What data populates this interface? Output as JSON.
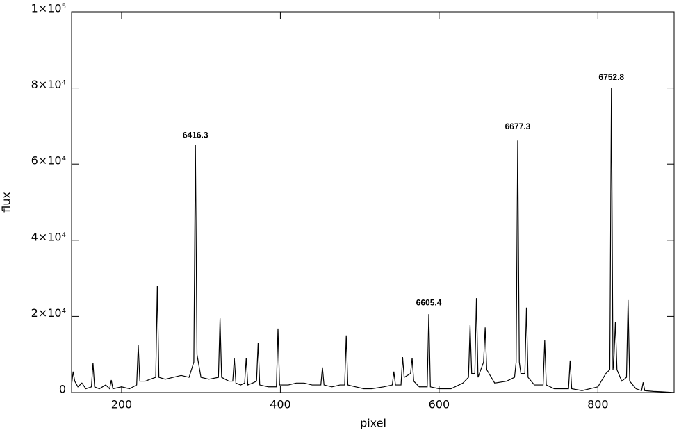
{
  "chart_data": {
    "type": "line",
    "xlabel": "pixel",
    "ylabel": "flux",
    "x": [
      137,
      139,
      141,
      145,
      150,
      155,
      162,
      164,
      166,
      172,
      180,
      185,
      187,
      189,
      200,
      210,
      219,
      221,
      223,
      230,
      236,
      243,
      245,
      247,
      255,
      265,
      275,
      285,
      291,
      293,
      295,
      300,
      310,
      322,
      324,
      326,
      335,
      340,
      342,
      344,
      350,
      355,
      357,
      359,
      365,
      370,
      372,
      374,
      385,
      395,
      397,
      399,
      410,
      420,
      430,
      440,
      451,
      453,
      455,
      465,
      475,
      481,
      483,
      485,
      495,
      505,
      515,
      530,
      541,
      543,
      545,
      552,
      554,
      556,
      564,
      566,
      568,
      575,
      585,
      587,
      589,
      600,
      615,
      630,
      637,
      639,
      641,
      645,
      647,
      649,
      656,
      658,
      660,
      670,
      685,
      695,
      697,
      699,
      701,
      703,
      708,
      710,
      712,
      720,
      731,
      733,
      735,
      745,
      755,
      763,
      765,
      767,
      780,
      800,
      810,
      815,
      817,
      819,
      820,
      822,
      824,
      830,
      836,
      838,
      840,
      848,
      855,
      857,
      859,
      870,
      880,
      896
    ],
    "series": [
      {
        "color": "#000000",
        "values": [
          2000,
          5500,
          3000,
          1500,
          2500,
          1000,
          1500,
          7800,
          1500,
          1000,
          2000,
          1000,
          3300,
          1000,
          1500,
          1000,
          2000,
          12400,
          3000,
          3000,
          3500,
          4000,
          28000,
          4000,
          3500,
          4000,
          4500,
          4000,
          8000,
          65000,
          10000,
          4000,
          3500,
          4000,
          19500,
          4000,
          3000,
          3000,
          9000,
          2500,
          2000,
          2500,
          9100,
          2000,
          2500,
          3000,
          13100,
          2000,
          1500,
          1500,
          16800,
          2000,
          2000,
          2500,
          2500,
          2000,
          2000,
          6600,
          2000,
          1500,
          2000,
          2000,
          15000,
          2000,
          1500,
          1000,
          1000,
          1500,
          2000,
          5500,
          2000,
          2000,
          9300,
          4000,
          5000,
          9100,
          3000,
          1500,
          1500,
          20600,
          1500,
          1000,
          1000,
          2500,
          4000,
          17700,
          5000,
          5000,
          24800,
          4000,
          8000,
          17100,
          6000,
          2500,
          3000,
          4000,
          8000,
          66200,
          8000,
          5000,
          5000,
          22300,
          4000,
          2000,
          2000,
          13700,
          2000,
          1000,
          1000,
          1000,
          8400,
          1000,
          500,
          1500,
          5000,
          6000,
          80000,
          6000,
          8000,
          18600,
          6000,
          3000,
          4000,
          24300,
          3000,
          1000,
          500,
          2700,
          500,
          300,
          200,
          0
        ]
      }
    ],
    "annotations": [
      {
        "text": "6416.3",
        "x": 293,
        "y": 67500
      },
      {
        "text": "6605.4",
        "x": 587,
        "y": 23500
      },
      {
        "text": "6677.3",
        "x": 699,
        "y": 69700
      },
      {
        "text": "6752.8",
        "x": 817,
        "y": 82700
      }
    ],
    "xlim": [
      137,
      896
    ],
    "xticks": [
      200,
      400,
      600,
      800
    ],
    "ylim": [
      0,
      100000
    ],
    "yticks": [
      0,
      {
        "value": 20000,
        "label": "2×10⁴"
      },
      {
        "value": 40000,
        "label": "4×10⁴"
      },
      {
        "value": 60000,
        "label": "6×10⁴"
      },
      {
        "value": 80000,
        "label": "8×10⁴"
      },
      {
        "value": 100000,
        "label": "1×10⁵"
      }
    ]
  }
}
